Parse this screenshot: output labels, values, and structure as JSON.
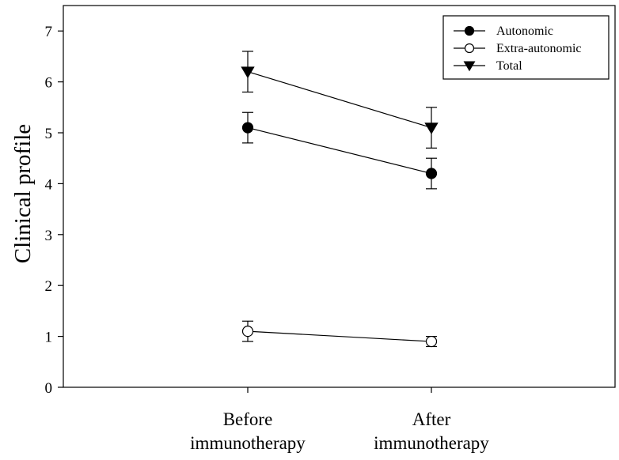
{
  "chart_data": {
    "type": "line",
    "categories": [
      "Before immunotherapy",
      "After immunotherapy"
    ],
    "category_lines": [
      [
        "Before",
        "immunotherapy"
      ],
      [
        "After",
        "immunotherapy"
      ]
    ],
    "ylabel": "Clinical profile",
    "xlabel": "",
    "ylim": [
      0,
      7.5
    ],
    "yticks": [
      0,
      1,
      2,
      3,
      4,
      5,
      6,
      7
    ],
    "grid": false,
    "legend_position": "top-right",
    "series": [
      {
        "name": "Autonomic",
        "marker": "filled-circle",
        "values": [
          5.1,
          4.2
        ],
        "errors": [
          0.3,
          0.3
        ]
      },
      {
        "name": "Extra-autonomic",
        "marker": "open-circle",
        "values": [
          1.1,
          0.9
        ],
        "errors": [
          0.2,
          0.1
        ]
      },
      {
        "name": "Total",
        "marker": "filled-triangle-down",
        "values": [
          6.2,
          5.1
        ],
        "errors": [
          0.4,
          0.4
        ]
      }
    ]
  }
}
